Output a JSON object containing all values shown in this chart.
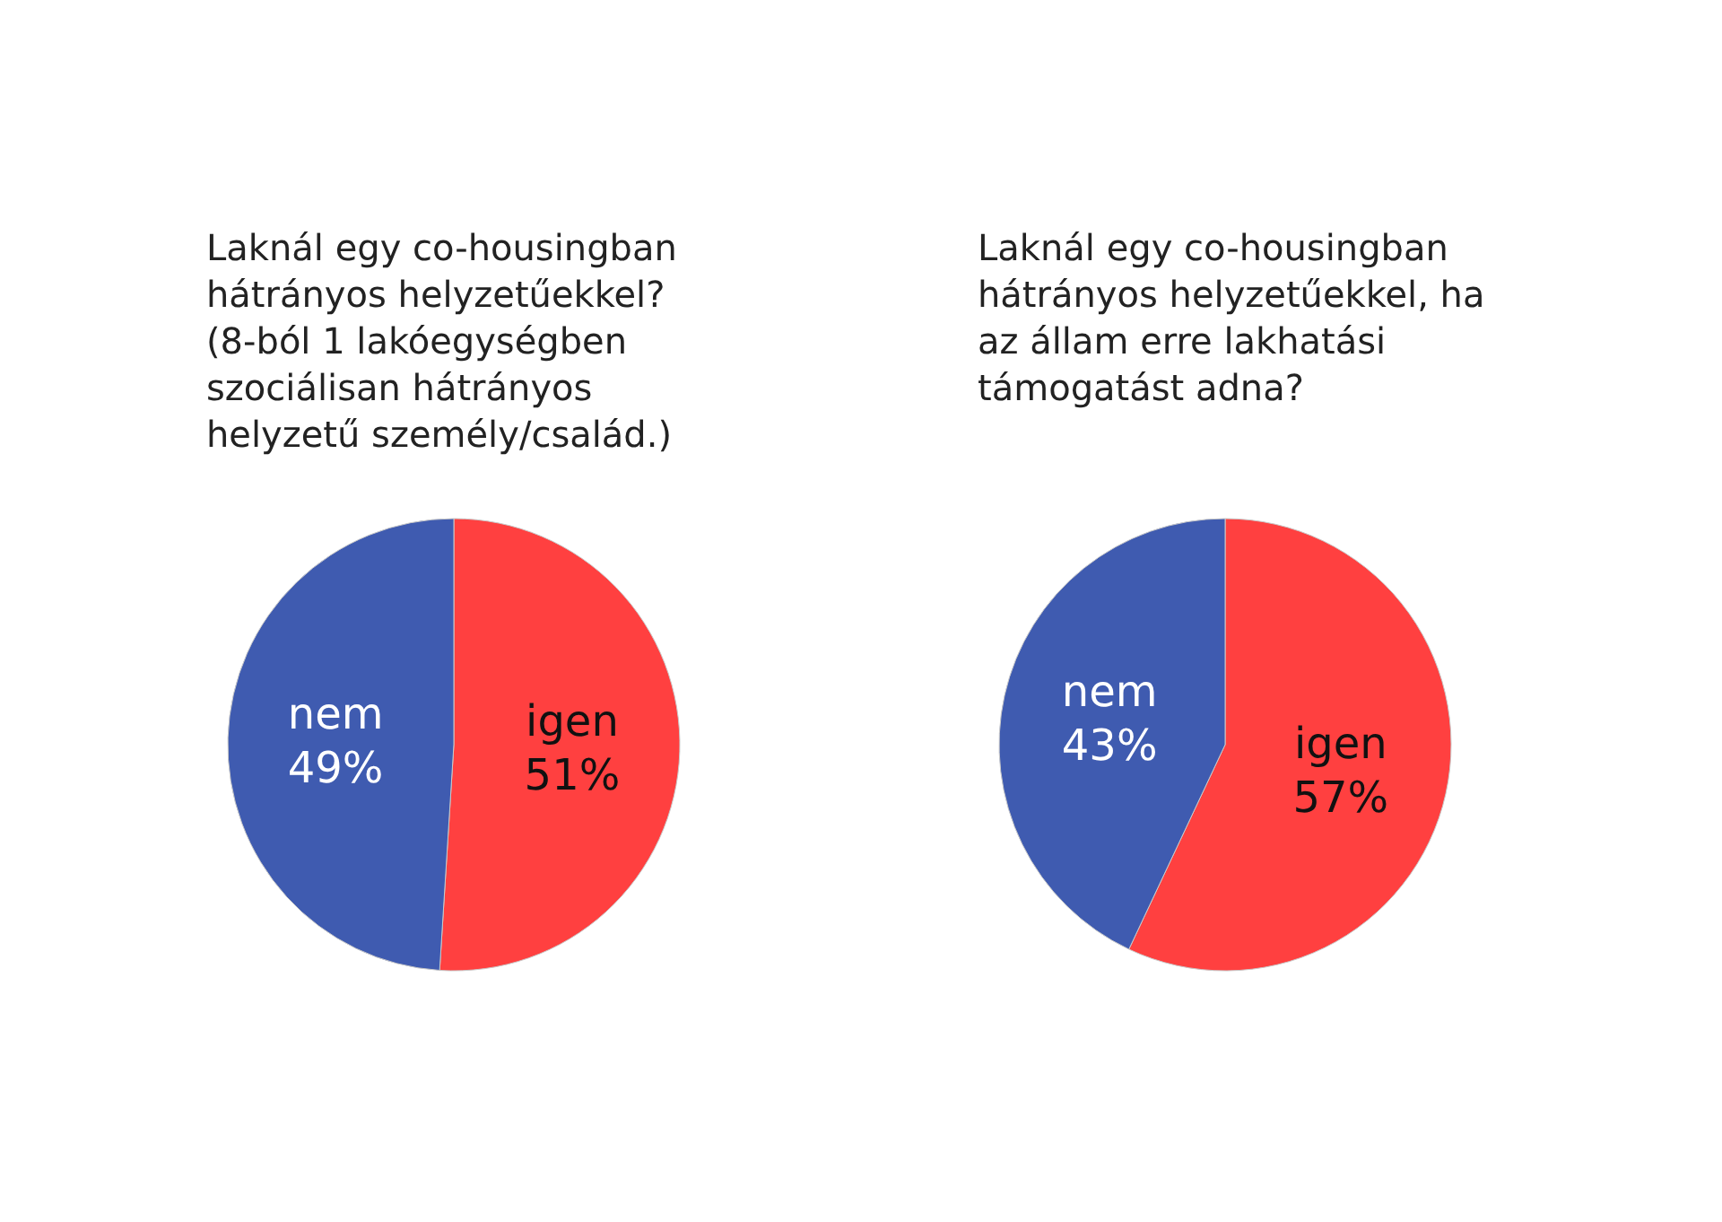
{
  "chart_data": [
    {
      "type": "pie",
      "title": "Laknál egy co-housingban hátrányos helyzetűekkel? (8-ból 1 lakóegységben szociálisan hátrányos helyzetű személy/család.)",
      "categories": [
        "igen",
        "nem"
      ],
      "values": [
        51,
        49
      ],
      "value_labels": [
        "51%",
        "49%"
      ],
      "colors": [
        "#ff4040",
        "#3f5bb0"
      ]
    },
    {
      "type": "pie",
      "title": "Laknál egy co-housingban hátrányos helyzetűekkel, ha az állam erre lakhatási támogatást adna?",
      "categories": [
        "igen",
        "nem"
      ],
      "values": [
        57,
        43
      ],
      "value_labels": [
        "57%",
        "43%"
      ],
      "colors": [
        "#ff4040",
        "#3f5bb0"
      ]
    }
  ]
}
